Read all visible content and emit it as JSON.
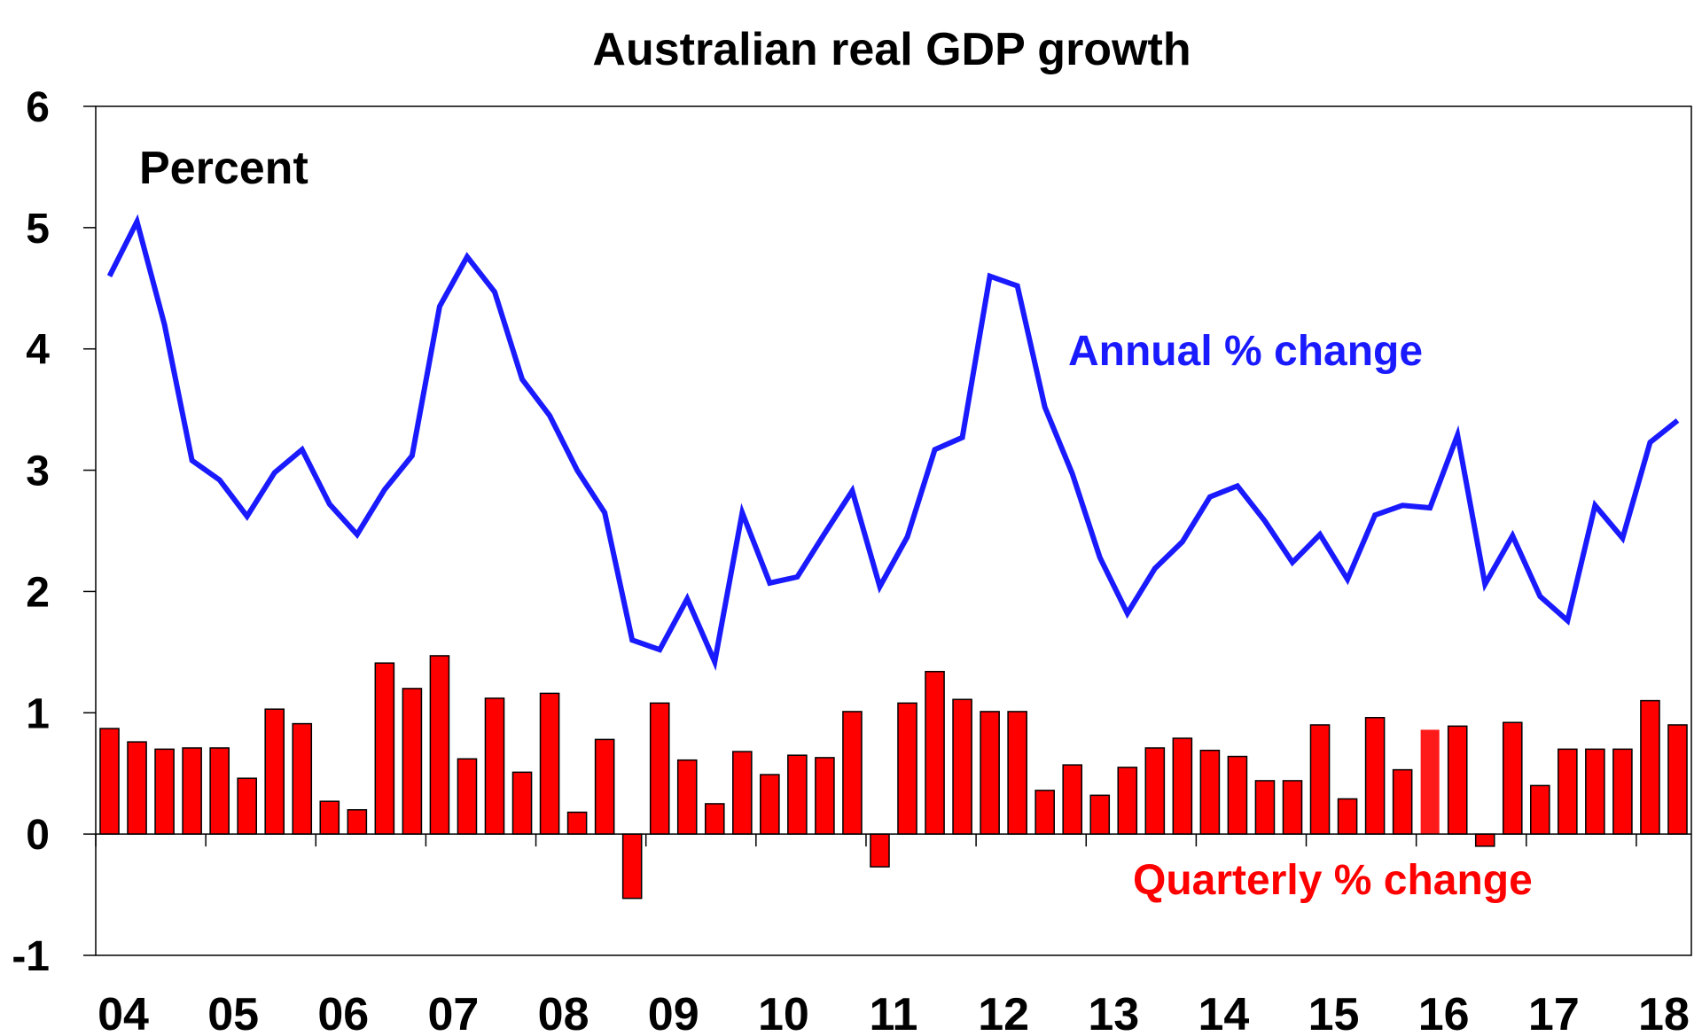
{
  "chart_data": {
    "type": "bar+line",
    "title": "Australian real GDP growth",
    "ylabel": "Percent",
    "ylim": [
      -1,
      6
    ],
    "yticks": [
      6,
      5,
      4,
      3,
      2,
      1,
      0,
      -1
    ],
    "grid": false,
    "x_tick_labels": [
      "04",
      "05",
      "06",
      "07",
      "08",
      "09",
      "10",
      "11",
      "12",
      "13",
      "14",
      "15",
      "16",
      "17",
      "18"
    ],
    "x_start_year": 2004,
    "quarters": 58,
    "highlight_index": 48,
    "colors": {
      "line": "#1a1aff",
      "bars": "#ff0000",
      "bar_border": "#000000",
      "highlight_bar": "#ff1a1a",
      "axis": "#000000",
      "text": "#000000"
    },
    "series": [
      {
        "name": "Annual % change",
        "kind": "line",
        "values": [
          4.6,
          5.05,
          4.2,
          3.08,
          2.92,
          2.62,
          2.98,
          3.17,
          2.72,
          2.47,
          2.84,
          3.12,
          4.35,
          4.76,
          4.47,
          3.75,
          3.45,
          3.0,
          2.65,
          1.6,
          1.52,
          1.94,
          1.42,
          2.65,
          2.07,
          2.12,
          2.48,
          2.83,
          2.04,
          2.45,
          3.17,
          3.27,
          4.6,
          4.52,
          3.52,
          2.97,
          2.28,
          1.82,
          2.19,
          2.41,
          2.78,
          2.87,
          2.58,
          2.24,
          2.47,
          2.1,
          2.63,
          2.71,
          2.69,
          3.29,
          2.06,
          2.46,
          1.96,
          1.76,
          2.71,
          2.44,
          3.23,
          3.41
        ]
      },
      {
        "name": "Quarterly % change",
        "kind": "bar",
        "values": [
          0.87,
          0.76,
          0.7,
          0.71,
          0.71,
          0.46,
          1.03,
          0.91,
          0.27,
          0.2,
          1.41,
          1.2,
          1.47,
          0.62,
          1.12,
          0.51,
          1.16,
          0.18,
          0.78,
          -0.53,
          1.08,
          0.61,
          0.25,
          0.68,
          0.49,
          0.65,
          0.63,
          1.01,
          -0.27,
          1.08,
          1.34,
          1.11,
          1.01,
          1.01,
          0.36,
          0.57,
          0.32,
          0.55,
          0.71,
          0.79,
          0.69,
          0.64,
          0.44,
          0.44,
          0.9,
          0.29,
          0.96,
          0.53,
          0.86,
          0.89,
          -0.1,
          0.92,
          0.4,
          0.7,
          0.7,
          0.7,
          1.1,
          0.9
        ]
      }
    ]
  }
}
